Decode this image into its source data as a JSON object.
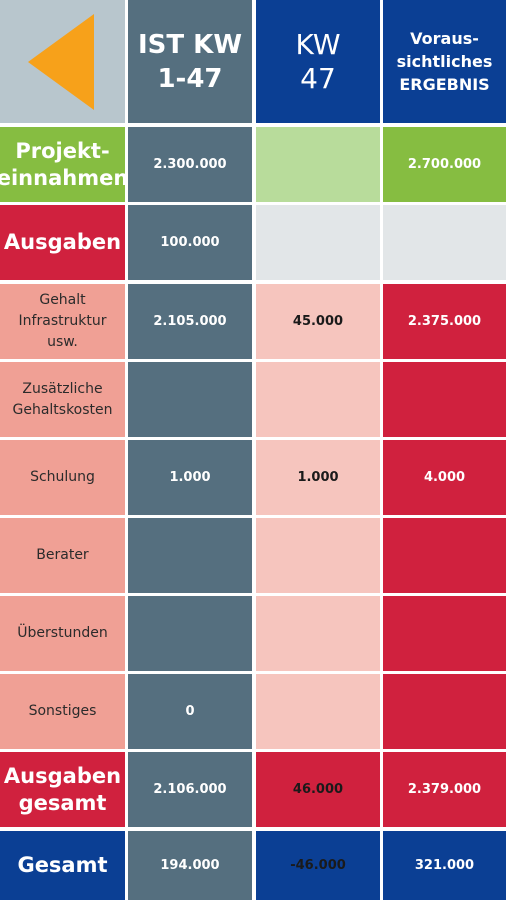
{
  "header": {
    "back_icon": "triangle-left-icon",
    "col1_line1": "IST KW",
    "col1_line2": "1-47",
    "col2_line1": "KW",
    "col2_line2": "47",
    "col3_line1": "Voraus-",
    "col3_line2": "sichtliches",
    "col3_line3": "ERGEBNIS"
  },
  "rows": {
    "projekteinnahmen": {
      "label1": "Projekt-",
      "label2": "einnahmen",
      "ist": "2.300.000",
      "kw": "",
      "ergebnis": "2.700.000"
    },
    "ausgaben": {
      "label": "Ausgaben",
      "ist": "100.000",
      "kw": "",
      "ergebnis": ""
    },
    "gehalt": {
      "label1": "Gehalt",
      "label2": "Infrastruktur",
      "label3": "usw.",
      "ist": "2.105.000",
      "kw": "45.000",
      "ergebnis": "2.375.000"
    },
    "zusatz": {
      "label1": "Zusätzliche",
      "label2": "Gehaltskosten",
      "ist": "",
      "kw": "",
      "ergebnis": ""
    },
    "schulung": {
      "label": "Schulung",
      "ist": "1.000",
      "kw": "1.000",
      "ergebnis": "4.000"
    },
    "berater": {
      "label": "Berater",
      "ist": "",
      "kw": "",
      "ergebnis": ""
    },
    "ueberstunden": {
      "label": "Überstunden",
      "ist": "",
      "kw": "",
      "ergebnis": ""
    },
    "sonstiges": {
      "label": "Sonstiges",
      "ist": "0",
      "kw": "",
      "ergebnis": ""
    },
    "ausgaben_gesamt": {
      "label1": "Ausgaben",
      "label2": "gesamt",
      "ist": "2.106.000",
      "kw": "46.000",
      "ergebnis": "2.379.000"
    },
    "gesamt": {
      "label": "Gesamt",
      "ist": "194.000",
      "kw": "-46.000",
      "ergebnis": "321.000"
    }
  },
  "colors": {
    "slate": "#556f7f",
    "blue": "#0b3f94",
    "green": "#86bd41",
    "red": "#d0213e",
    "salmon": "#f0a095",
    "orange": "#f7a11a"
  }
}
